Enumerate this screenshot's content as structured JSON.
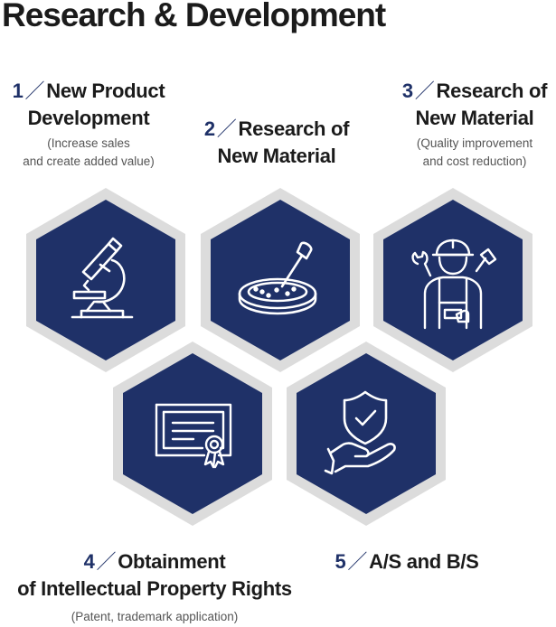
{
  "title": "Research & Development",
  "items": [
    {
      "num": "1",
      "slash": "／",
      "line1": "New Product",
      "line2": "Development",
      "sub1": "(Increase sales",
      "sub2": "and create added value)"
    },
    {
      "num": "2",
      "slash": "／",
      "line1": "Research of",
      "line2": "New Material",
      "sub1": "",
      "sub2": ""
    },
    {
      "num": "3",
      "slash": "／",
      "line1": "Research of",
      "line2": "New Material",
      "sub1": "(Quality improvement",
      "sub2": "and cost reduction)"
    },
    {
      "num": "4",
      "slash": "／",
      "line1": "Obtainment",
      "line2": "of Intellectual Property Rights",
      "sub1": "(Patent, trademark application)",
      "sub2": ""
    },
    {
      "num": "5",
      "slash": "／",
      "line1": "A/S and B/S",
      "line2": "",
      "sub1": "",
      "sub2": ""
    }
  ],
  "icons": [
    "microscope-icon",
    "petri-dish-icon",
    "worker-icon",
    "certificate-icon",
    "shield-hand-icon"
  ],
  "colors": {
    "hex_fill": "#1f3168",
    "hex_border": "#dcdcdc",
    "icon_stroke": "#ffffff"
  }
}
